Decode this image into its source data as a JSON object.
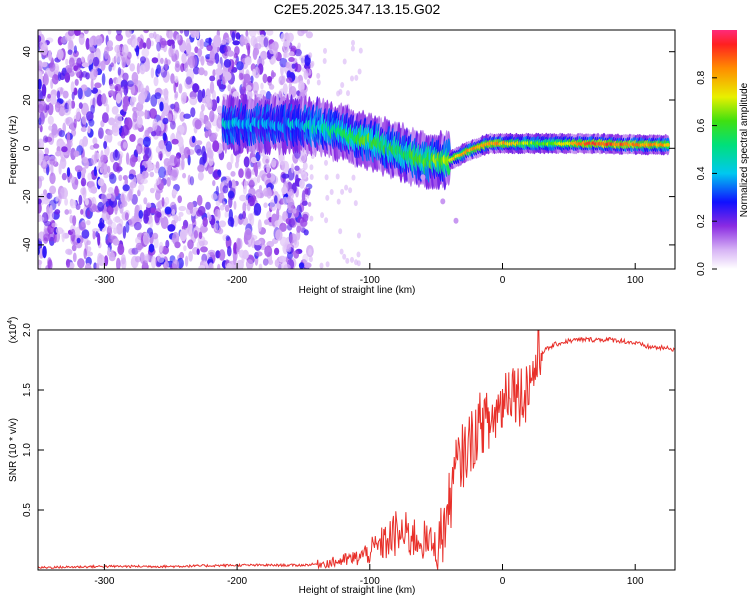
{
  "title": "C2E5.2025.347.13.15.G02",
  "chart_data": [
    {
      "type": "heatmap",
      "xlabel": "Height of straight line (km)",
      "ylabel": "Frequency (Hz)",
      "xlim": [
        -350,
        130
      ],
      "ylim": [
        -50,
        49
      ],
      "xticks": [
        -300,
        -200,
        -100,
        0,
        100
      ],
      "yticks": [
        -40,
        -20,
        0,
        20,
        40
      ],
      "colorbar": {
        "label": "Normalized spectral amplitude",
        "range": [
          0.0,
          1.0
        ],
        "ticks": [
          0.0,
          0.2,
          0.4,
          0.6,
          0.8
        ]
      },
      "noise_region": {
        "x_from": -350,
        "x_to": -145,
        "freq_range": [
          -50,
          49
        ],
        "level": 0.15
      },
      "signal_track": [
        {
          "x": -210,
          "freq": 10,
          "amp": 0.4
        },
        {
          "x": -170,
          "freq": 10,
          "amp": 0.35
        },
        {
          "x": -140,
          "freq": 9,
          "amp": 0.45
        },
        {
          "x": -120,
          "freq": 6,
          "amp": 0.55
        },
        {
          "x": -100,
          "freq": 3,
          "amp": 0.6
        },
        {
          "x": -80,
          "freq": -1,
          "amp": 0.55
        },
        {
          "x": -60,
          "freq": -5,
          "amp": 0.6
        },
        {
          "x": -40,
          "freq": -5,
          "amp": 0.7
        },
        {
          "x": -25,
          "freq": -1,
          "amp": 0.8
        },
        {
          "x": -10,
          "freq": 2,
          "amp": 0.85
        },
        {
          "x": 0,
          "freq": 2,
          "amp": 0.8
        },
        {
          "x": 30,
          "freq": 2,
          "amp": 0.6
        },
        {
          "x": 70,
          "freq": 2,
          "amp": 0.9
        },
        {
          "x": 100,
          "freq": 1.5,
          "amp": 0.85
        },
        {
          "x": 125,
          "freq": 1.5,
          "amp": 0.8
        }
      ],
      "tail": [
        {
          "x": -60,
          "freq": -12
        },
        {
          "x": -45,
          "freq": -22
        },
        {
          "x": -35,
          "freq": -30
        }
      ]
    },
    {
      "type": "line",
      "xlabel": "Height of straight line (km)",
      "ylabel": "SNR (10 * v/v)",
      "yscale_label": "(x10",
      "yscale_exp": "4",
      "yscale_close": ")",
      "xlim": [
        -350,
        130
      ],
      "ylim": [
        0,
        2.0
      ],
      "xticks": [
        -300,
        -200,
        -100,
        0,
        100
      ],
      "yticks": [
        0.5,
        1.0,
        1.5,
        2.0
      ],
      "ytick_labels": [
        "0.5",
        "1.0",
        "1.5",
        "2.0"
      ],
      "color": "#e8302a",
      "series": [
        {
          "name": "SNR",
          "x": [
            -350,
            -300,
            -250,
            -200,
            -150,
            -130,
            -110,
            -100,
            -90,
            -80,
            -70,
            -60,
            -50,
            -45,
            -40,
            -35,
            -30,
            -25,
            -20,
            -15,
            -10,
            -5,
            0,
            5,
            10,
            15,
            20,
            25,
            30,
            40,
            50,
            60,
            70,
            80,
            90,
            100,
            110,
            120,
            130
          ],
          "y": [
            0.02,
            0.03,
            0.03,
            0.04,
            0.04,
            0.06,
            0.1,
            0.15,
            0.22,
            0.3,
            0.28,
            0.25,
            0.2,
            0.3,
            0.55,
            0.85,
            0.95,
            1.05,
            1.15,
            1.25,
            1.2,
            1.3,
            1.4,
            1.55,
            1.5,
            1.45,
            1.55,
            1.7,
            1.82,
            1.88,
            1.91,
            1.92,
            1.92,
            1.92,
            1.91,
            1.89,
            1.86,
            1.85,
            1.84
          ]
        }
      ]
    }
  ]
}
